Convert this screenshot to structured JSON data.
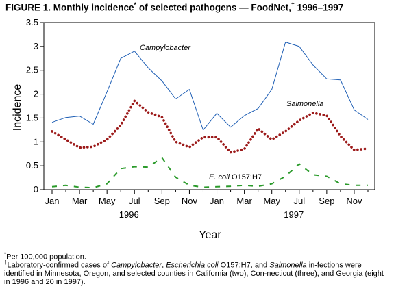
{
  "title": {
    "figure": "FIGURE 1.",
    "text_before": "Monthly incidence",
    "mark1": "*",
    "text_mid": "of selected pathogens — FoodNet,",
    "mark2": "†",
    "text_after": "1996–1997"
  },
  "chart_data": {
    "type": "line",
    "x": [
      "Jan 1996",
      "Feb 1996",
      "Mar 1996",
      "Apr 1996",
      "May 1996",
      "Jun 1996",
      "Jul 1996",
      "Aug 1996",
      "Sep 1996",
      "Oct 1996",
      "Nov 1996",
      "Dec 1996",
      "Jan 1997",
      "Feb 1997",
      "Mar 1997",
      "Apr 1997",
      "May 1997",
      "Jun 1997",
      "Jul 1997",
      "Aug 1997",
      "Sep 1997",
      "Oct 1997",
      "Nov 1997",
      "Dec 1997"
    ],
    "tick_labels": [
      "Jan",
      "Mar",
      "May",
      "Jul",
      "Sep",
      "Nov",
      "Jan",
      "Mar",
      "May",
      "Jul",
      "Sep",
      "Nov"
    ],
    "year_labels": [
      "1996",
      "1997"
    ],
    "xlabel": "Year",
    "ylabel": "Incidence",
    "ylim": [
      0,
      3.5
    ],
    "yticks": [
      "0",
      "0.5",
      "1",
      "1.5",
      "2",
      "2.5",
      "3",
      "3.5"
    ],
    "grid": false,
    "series": [
      {
        "name": "Campylobacter",
        "color": "#1f5fb5",
        "style": "solid",
        "values": [
          1.41,
          1.51,
          1.54,
          1.37,
          2.05,
          2.75,
          2.9,
          2.55,
          2.28,
          1.9,
          2.1,
          1.25,
          1.6,
          1.31,
          1.55,
          1.7,
          2.1,
          3.09,
          3.0,
          2.61,
          2.32,
          2.3,
          1.67,
          1.47
        ]
      },
      {
        "name": "Salmonella",
        "color": "#9c1a1a",
        "style": "dotted",
        "values": [
          1.22,
          1.05,
          0.88,
          0.9,
          1.05,
          1.35,
          1.86,
          1.62,
          1.52,
          1.0,
          0.89,
          1.1,
          1.1,
          0.78,
          0.85,
          1.28,
          1.05,
          1.22,
          1.45,
          1.61,
          1.55,
          1.12,
          0.83,
          0.86
        ]
      },
      {
        "name": "E. coli O157:H7",
        "color": "#2a9a2a",
        "style": "dashed",
        "values": [
          0.06,
          0.09,
          0.05,
          0.04,
          0.12,
          0.44,
          0.48,
          0.47,
          0.67,
          0.26,
          0.09,
          0.05,
          0.06,
          0.07,
          0.09,
          0.07,
          0.12,
          0.28,
          0.54,
          0.31,
          0.28,
          0.12,
          0.09,
          0.09
        ]
      }
    ],
    "labels": {
      "campylobacter": "Campylobacter",
      "salmonella": "Salmonella",
      "ecoli_italic": "E. coli",
      "ecoli_rest": "O157:H7"
    }
  },
  "footnotes": {
    "fn1": {
      "mark": "*",
      "text": "Per 100,000 population."
    },
    "fn2": {
      "mark": "†",
      "parts": [
        {
          "text": "Laboratory-confirmed cases of ",
          "italic": false
        },
        {
          "text": "Campylobacter",
          "italic": true
        },
        {
          "text": ", ",
          "italic": false
        },
        {
          "text": "Escherichia coli",
          "italic": true
        },
        {
          "text": " O157:H7, and ",
          "italic": false
        },
        {
          "text": "Salmonella",
          "italic": true
        },
        {
          "text": " in-fections were identified in Minnesota, Oregon, and selected counties in California (two), Con-necticut (three), and Georgia (eight in 1996 and 20 in 1997).",
          "italic": false
        }
      ]
    }
  }
}
